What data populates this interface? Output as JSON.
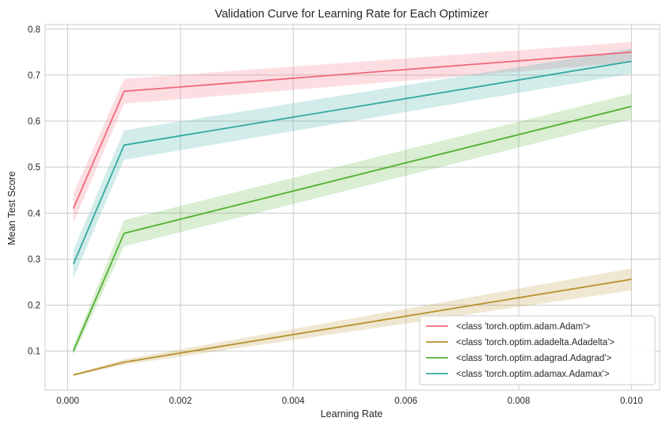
{
  "chart_data": {
    "type": "line",
    "title": "Validation Curve for Learning Rate for Each Optimizer",
    "xlabel": "Learning Rate",
    "ylabel": "Mean Test Score",
    "x": [
      0.0001,
      0.001,
      0.01
    ],
    "xlim": [
      -0.0004,
      0.0105
    ],
    "ylim": [
      0.015,
      0.81
    ],
    "xticks": [
      "0.000",
      "0.002",
      "0.004",
      "0.006",
      "0.008",
      "0.010"
    ],
    "xtick_values": [
      0,
      0.002,
      0.004,
      0.006,
      0.008,
      0.01
    ],
    "yticks": [
      "0.1",
      "0.2",
      "0.3",
      "0.4",
      "0.5",
      "0.6",
      "0.7",
      "0.8"
    ],
    "ytick_values": [
      0.1,
      0.2,
      0.3,
      0.4,
      0.5,
      0.6,
      0.7,
      0.8
    ],
    "grid": true,
    "legend_position": "lower-right",
    "series": [
      {
        "name": "<class 'torch.optim.adam.Adam'>",
        "color": "#f0697d",
        "values": [
          0.41,
          0.665,
          0.75
        ],
        "lower": [
          0.378,
          0.638,
          0.728
        ],
        "upper": [
          0.442,
          0.692,
          0.772
        ]
      },
      {
        "name": "<class 'torch.optim.adadelta.Adadelta'>",
        "color": "#b8912f",
        "values": [
          0.048,
          0.076,
          0.256
        ],
        "lower": [
          0.046,
          0.07,
          0.232
        ],
        "upper": [
          0.05,
          0.082,
          0.28
        ]
      },
      {
        "name": "<class 'torch.optim.adagrad.Adagrad'>",
        "color": "#50b131",
        "values": [
          0.1,
          0.356,
          0.632
        ],
        "lower": [
          0.09,
          0.328,
          0.604
        ],
        "upper": [
          0.11,
          0.385,
          0.66
        ]
      },
      {
        "name": "<class 'torch.optim.adamax.Adamax'>",
        "color": "#34a9a0",
        "values": [
          0.289,
          0.548,
          0.73
        ],
        "lower": [
          0.259,
          0.516,
          0.703
        ],
        "upper": [
          0.319,
          0.58,
          0.757
        ]
      }
    ]
  }
}
